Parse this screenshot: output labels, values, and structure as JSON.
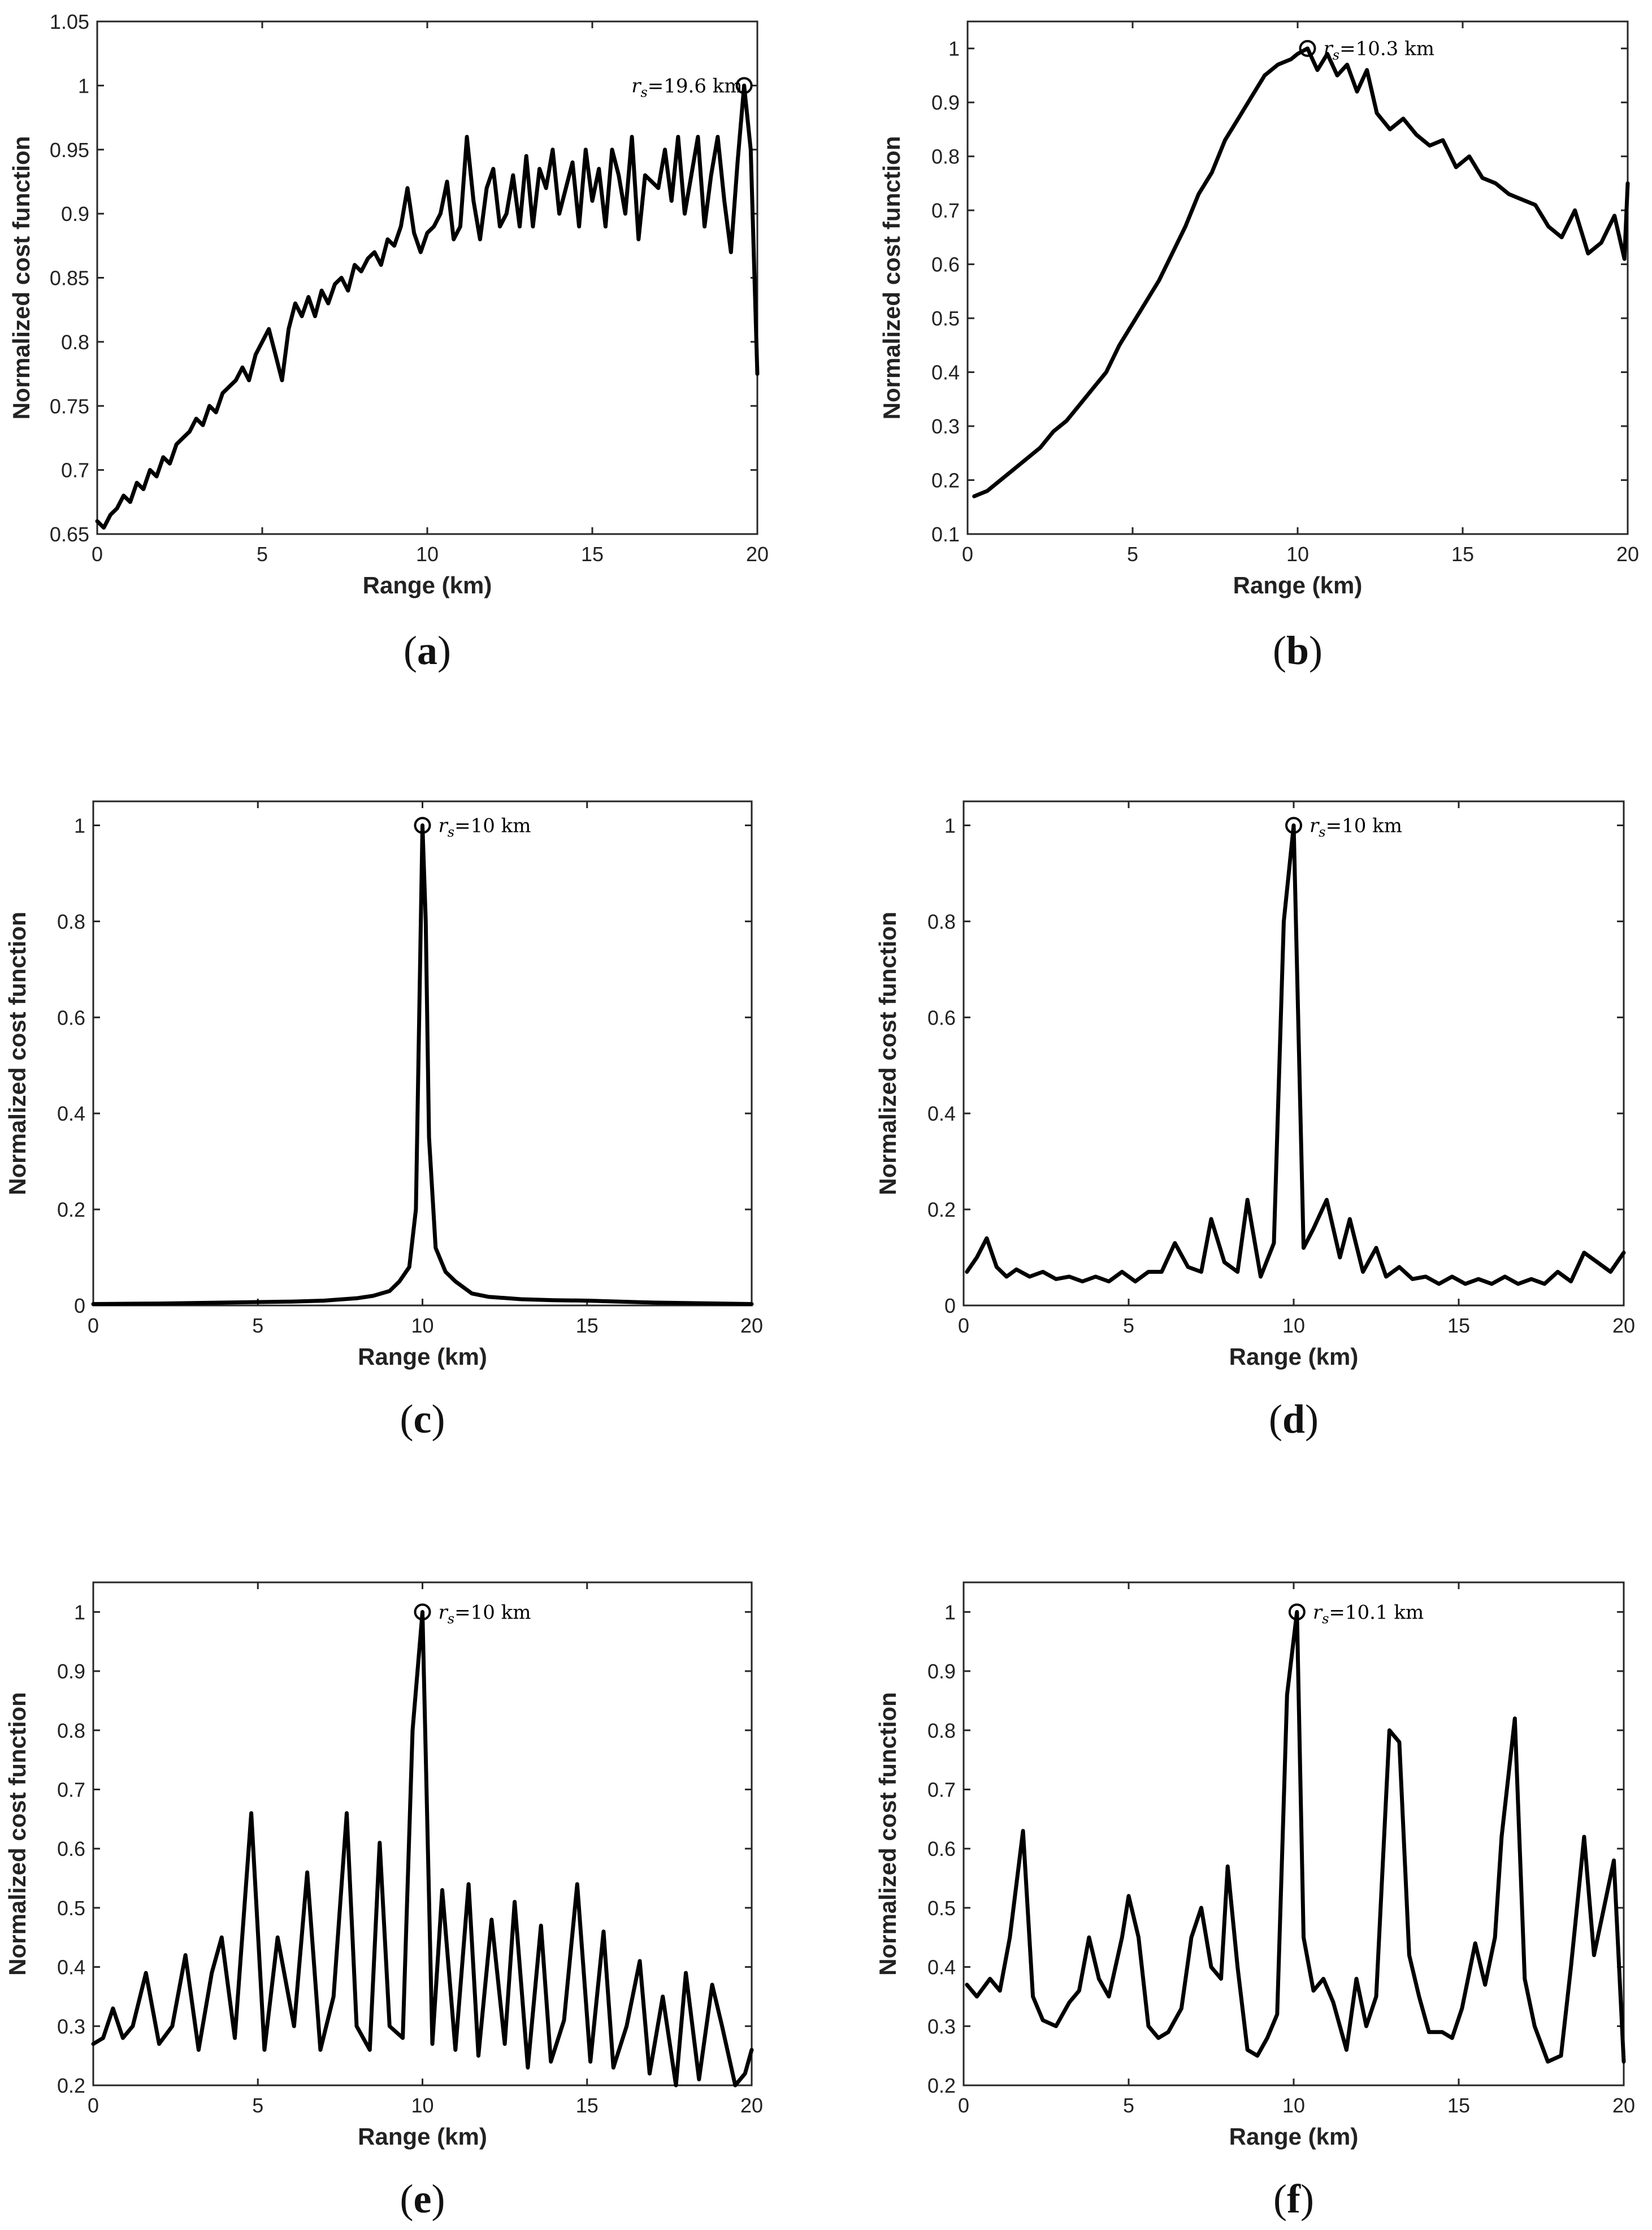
{
  "chart_data": [
    {
      "panel": "a",
      "caption": "a",
      "type": "line",
      "xlabel": "Range (km)",
      "ylabel": "Normalized cost function",
      "xlim": [
        0,
        20
      ],
      "ylim": [
        0.65,
        1.05
      ],
      "xticks": [
        0,
        5,
        10,
        15,
        20
      ],
      "xtick_labels": [
        "0",
        "5",
        "10",
        "15",
        "20"
      ],
      "yticks": [
        0.65,
        0.7,
        0.75,
        0.8,
        0.85,
        0.9,
        0.95,
        1,
        1.05
      ],
      "ytick_labels": [
        "0.65",
        "0.7",
        "0.75",
        "0.8",
        "0.85",
        "0.9",
        "0.95",
        "1",
        "1.05"
      ],
      "annotation": {
        "label": "r",
        "subscript": "s",
        "text": "=19.6 km",
        "x": 19.6,
        "y": 1.0,
        "side": "left"
      },
      "x": [
        0,
        0.2,
        0.4,
        0.6,
        0.8,
        1.0,
        1.2,
        1.4,
        1.6,
        1.8,
        2.0,
        2.2,
        2.4,
        2.6,
        2.8,
        3.0,
        3.2,
        3.4,
        3.6,
        3.8,
        4.0,
        4.2,
        4.4,
        4.6,
        4.8,
        5.0,
        5.2,
        5.4,
        5.6,
        5.8,
        6.0,
        6.2,
        6.4,
        6.6,
        6.8,
        7.0,
        7.2,
        7.4,
        7.6,
        7.8,
        8.0,
        8.2,
        8.4,
        8.6,
        8.8,
        9.0,
        9.2,
        9.4,
        9.6,
        9.8,
        10.0,
        10.2,
        10.4,
        10.6,
        10.8,
        11.0,
        11.2,
        11.4,
        11.6,
        11.8,
        12.0,
        12.2,
        12.4,
        12.6,
        12.8,
        13.0,
        13.2,
        13.4,
        13.6,
        13.8,
        14.0,
        14.2,
        14.4,
        14.6,
        14.8,
        15.0,
        15.2,
        15.4,
        15.6,
        15.8,
        16.0,
        16.2,
        16.4,
        16.6,
        16.8,
        17.0,
        17.2,
        17.4,
        17.6,
        17.8,
        18.0,
        18.2,
        18.4,
        18.6,
        18.8,
        19.0,
        19.2,
        19.4,
        19.6,
        19.8,
        20.0
      ],
      "values": [
        0.66,
        0.655,
        0.665,
        0.67,
        0.68,
        0.675,
        0.69,
        0.685,
        0.7,
        0.695,
        0.71,
        0.705,
        0.72,
        0.725,
        0.73,
        0.74,
        0.735,
        0.75,
        0.745,
        0.76,
        0.765,
        0.77,
        0.78,
        0.77,
        0.79,
        0.8,
        0.81,
        0.79,
        0.77,
        0.81,
        0.83,
        0.82,
        0.835,
        0.82,
        0.84,
        0.83,
        0.845,
        0.85,
        0.84,
        0.86,
        0.855,
        0.865,
        0.87,
        0.86,
        0.88,
        0.875,
        0.89,
        0.92,
        0.885,
        0.87,
        0.885,
        0.89,
        0.9,
        0.925,
        0.88,
        0.89,
        0.96,
        0.91,
        0.88,
        0.92,
        0.935,
        0.89,
        0.9,
        0.93,
        0.89,
        0.945,
        0.89,
        0.935,
        0.92,
        0.95,
        0.9,
        0.92,
        0.94,
        0.89,
        0.95,
        0.91,
        0.935,
        0.89,
        0.95,
        0.93,
        0.9,
        0.96,
        0.88,
        0.93,
        0.925,
        0.92,
        0.95,
        0.91,
        0.96,
        0.9,
        0.93,
        0.96,
        0.89,
        0.93,
        0.96,
        0.91,
        0.87,
        0.94,
        1.0,
        0.95,
        0.775
      ]
    },
    {
      "panel": "b",
      "caption": "b",
      "type": "line",
      "xlabel": "Range (km)",
      "ylabel": "Normalized cost function",
      "xlim": [
        0,
        20
      ],
      "ylim": [
        0.1,
        1.05
      ],
      "xticks": [
        0,
        5,
        10,
        15,
        20
      ],
      "xtick_labels": [
        "0",
        "5",
        "10",
        "15",
        "20"
      ],
      "yticks": [
        0.1,
        0.2,
        0.3,
        0.4,
        0.5,
        0.6,
        0.7,
        0.8,
        0.9,
        1
      ],
      "ytick_labels": [
        "0.1",
        "0.2",
        "0.3",
        "0.4",
        "0.5",
        "0.6",
        "0.7",
        "0.8",
        "0.9",
        "1"
      ],
      "annotation": {
        "label": "r",
        "subscript": "s",
        "text": "=10.3 km",
        "x": 10.3,
        "y": 1.0,
        "side": "right"
      },
      "x": [
        0.2,
        0.6,
        1.0,
        1.4,
        1.8,
        2.2,
        2.6,
        3.0,
        3.4,
        3.8,
        4.2,
        4.6,
        5.0,
        5.4,
        5.8,
        6.2,
        6.6,
        7.0,
        7.4,
        7.8,
        8.2,
        8.6,
        9.0,
        9.4,
        9.8,
        10.0,
        10.3,
        10.6,
        10.9,
        11.2,
        11.5,
        11.8,
        12.1,
        12.4,
        12.8,
        13.2,
        13.6,
        14.0,
        14.4,
        14.8,
        15.2,
        15.6,
        16.0,
        16.4,
        16.8,
        17.2,
        17.6,
        18.0,
        18.4,
        18.8,
        19.2,
        19.6,
        19.9,
        20.0
      ],
      "values": [
        0.17,
        0.18,
        0.2,
        0.22,
        0.24,
        0.26,
        0.29,
        0.31,
        0.34,
        0.37,
        0.4,
        0.45,
        0.49,
        0.53,
        0.57,
        0.62,
        0.67,
        0.73,
        0.77,
        0.83,
        0.87,
        0.91,
        0.95,
        0.97,
        0.98,
        0.99,
        1.0,
        0.96,
        0.99,
        0.95,
        0.97,
        0.92,
        0.96,
        0.88,
        0.85,
        0.87,
        0.84,
        0.82,
        0.83,
        0.78,
        0.8,
        0.76,
        0.75,
        0.73,
        0.72,
        0.71,
        0.67,
        0.65,
        0.7,
        0.62,
        0.64,
        0.69,
        0.61,
        0.75
      ]
    },
    {
      "panel": "c",
      "caption": "c",
      "type": "line",
      "xlabel": "Range (km)",
      "ylabel": "Normalized cost function",
      "xlim": [
        0,
        20
      ],
      "ylim": [
        0,
        1.05
      ],
      "xticks": [
        0,
        5,
        10,
        15,
        20
      ],
      "xtick_labels": [
        "0",
        "5",
        "10",
        "15",
        "20"
      ],
      "yticks": [
        0,
        0.2,
        0.4,
        0.6,
        0.8,
        1
      ],
      "ytick_labels": [
        "0",
        "0.2",
        "0.4",
        "0.6",
        "0.8",
        "1"
      ],
      "annotation": {
        "label": "r",
        "subscript": "s",
        "text": "=10 km",
        "x": 10.0,
        "y": 1.0,
        "side": "right"
      },
      "x": [
        0,
        2,
        4,
        6,
        7,
        8,
        8.5,
        9.0,
        9.3,
        9.6,
        9.8,
        9.9,
        10.0,
        10.1,
        10.2,
        10.4,
        10.7,
        11.0,
        11.5,
        12.0,
        13.0,
        14.0,
        15.0,
        16.0,
        17.0,
        18.0,
        19.0,
        20.0
      ],
      "values": [
        0.003,
        0.004,
        0.006,
        0.008,
        0.01,
        0.015,
        0.02,
        0.03,
        0.05,
        0.08,
        0.2,
        0.6,
        1.0,
        0.8,
        0.35,
        0.12,
        0.07,
        0.05,
        0.025,
        0.018,
        0.013,
        0.011,
        0.01,
        0.008,
        0.006,
        0.005,
        0.004,
        0.003
      ]
    },
    {
      "panel": "d",
      "caption": "d",
      "type": "line",
      "xlabel": "Range (km)",
      "ylabel": "Normalized cost function",
      "xlim": [
        0,
        20
      ],
      "ylim": [
        0,
        1.05
      ],
      "xticks": [
        0,
        5,
        10,
        15,
        20
      ],
      "xtick_labels": [
        "0",
        "5",
        "10",
        "15",
        "20"
      ],
      "yticks": [
        0,
        0.2,
        0.4,
        0.6,
        0.8,
        1
      ],
      "ytick_labels": [
        "0",
        "0.2",
        "0.4",
        "0.6",
        "0.8",
        "1"
      ],
      "annotation": {
        "label": "r",
        "subscript": "s",
        "text": "=10 km",
        "x": 10.0,
        "y": 1.0,
        "side": "right"
      },
      "x": [
        0.1,
        0.4,
        0.7,
        1.0,
        1.3,
        1.6,
        2.0,
        2.4,
        2.8,
        3.2,
        3.6,
        4.0,
        4.4,
        4.8,
        5.2,
        5.6,
        6.0,
        6.4,
        6.8,
        7.2,
        7.5,
        7.9,
        8.3,
        8.6,
        9.0,
        9.4,
        9.7,
        10.0,
        10.3,
        10.6,
        11.0,
        11.4,
        11.7,
        12.1,
        12.5,
        12.8,
        13.2,
        13.6,
        14.0,
        14.4,
        14.8,
        15.2,
        15.6,
        16.0,
        16.4,
        16.8,
        17.2,
        17.6,
        18.0,
        18.4,
        18.8,
        19.2,
        19.6,
        20.0
      ],
      "values": [
        0.07,
        0.1,
        0.14,
        0.08,
        0.06,
        0.075,
        0.06,
        0.07,
        0.055,
        0.06,
        0.05,
        0.06,
        0.05,
        0.07,
        0.05,
        0.07,
        0.07,
        0.13,
        0.08,
        0.07,
        0.18,
        0.09,
        0.07,
        0.22,
        0.06,
        0.13,
        0.8,
        1.0,
        0.12,
        0.16,
        0.22,
        0.1,
        0.18,
        0.07,
        0.12,
        0.06,
        0.08,
        0.055,
        0.06,
        0.045,
        0.06,
        0.045,
        0.055,
        0.045,
        0.06,
        0.045,
        0.055,
        0.045,
        0.07,
        0.05,
        0.11,
        0.09,
        0.07,
        0.11
      ]
    },
    {
      "panel": "e",
      "caption": "e",
      "type": "line",
      "xlabel": "Range (km)",
      "ylabel": "Normalized cost function",
      "xlim": [
        0,
        20
      ],
      "ylim": [
        0.2,
        1.05
      ],
      "xticks": [
        0,
        5,
        10,
        15,
        20
      ],
      "xtick_labels": [
        "0",
        "5",
        "10",
        "15",
        "20"
      ],
      "yticks": [
        0.2,
        0.3,
        0.4,
        0.5,
        0.6,
        0.7,
        0.8,
        0.9,
        1
      ],
      "ytick_labels": [
        "0.2",
        "0.3",
        "0.4",
        "0.5",
        "0.6",
        "0.7",
        "0.8",
        "0.9",
        "1"
      ],
      "annotation": {
        "label": "r",
        "subscript": "s",
        "text": "=10 km",
        "x": 10.0,
        "y": 1.0,
        "side": "right"
      },
      "x": [
        0.0,
        0.3,
        0.6,
        0.9,
        1.2,
        1.6,
        2.0,
        2.4,
        2.8,
        3.2,
        3.6,
        3.9,
        4.3,
        4.8,
        5.2,
        5.6,
        6.1,
        6.5,
        6.9,
        7.3,
        7.7,
        8.0,
        8.4,
        8.7,
        9.0,
        9.4,
        9.7,
        10.0,
        10.3,
        10.6,
        11.0,
        11.4,
        11.7,
        12.1,
        12.5,
        12.8,
        13.2,
        13.6,
        13.9,
        14.3,
        14.7,
        15.1,
        15.5,
        15.8,
        16.2,
        16.6,
        16.9,
        17.3,
        17.7,
        18.0,
        18.4,
        18.8,
        19.1,
        19.5,
        19.8,
        20.0
      ],
      "values": [
        0.27,
        0.28,
        0.33,
        0.28,
        0.3,
        0.39,
        0.27,
        0.3,
        0.42,
        0.26,
        0.39,
        0.45,
        0.28,
        0.66,
        0.26,
        0.45,
        0.3,
        0.56,
        0.26,
        0.35,
        0.66,
        0.3,
        0.26,
        0.61,
        0.3,
        0.28,
        0.8,
        1.0,
        0.27,
        0.53,
        0.26,
        0.54,
        0.25,
        0.48,
        0.27,
        0.51,
        0.23,
        0.47,
        0.24,
        0.31,
        0.54,
        0.24,
        0.46,
        0.23,
        0.3,
        0.41,
        0.22,
        0.35,
        0.2,
        0.39,
        0.21,
        0.37,
        0.3,
        0.2,
        0.22,
        0.26
      ]
    },
    {
      "panel": "f",
      "caption": "f",
      "type": "line",
      "xlabel": "Range (km)",
      "ylabel": "Normalized cost function",
      "xlim": [
        0,
        20
      ],
      "ylim": [
        0.2,
        1.05
      ],
      "xticks": [
        0,
        5,
        10,
        15,
        20
      ],
      "xtick_labels": [
        "0",
        "5",
        "10",
        "15",
        "20"
      ],
      "yticks": [
        0.2,
        0.3,
        0.4,
        0.5,
        0.6,
        0.7,
        0.8,
        0.9,
        1
      ],
      "ytick_labels": [
        "0.2",
        "0.3",
        "0.4",
        "0.5",
        "0.6",
        "0.7",
        "0.8",
        "0.9",
        "1"
      ],
      "annotation": {
        "label": "r",
        "subscript": "s",
        "text": "=10.1 km",
        "x": 10.1,
        "y": 1.0,
        "side": "right"
      },
      "x": [
        0.1,
        0.4,
        0.8,
        1.1,
        1.4,
        1.8,
        2.1,
        2.4,
        2.8,
        3.2,
        3.5,
        3.8,
        4.1,
        4.4,
        4.8,
        5.0,
        5.3,
        5.6,
        5.9,
        6.2,
        6.6,
        6.9,
        7.2,
        7.5,
        7.8,
        8.0,
        8.3,
        8.6,
        8.9,
        9.2,
        9.5,
        9.8,
        10.1,
        10.3,
        10.6,
        10.9,
        11.2,
        11.6,
        11.9,
        12.2,
        12.5,
        12.9,
        13.2,
        13.5,
        13.8,
        14.1,
        14.5,
        14.8,
        15.1,
        15.5,
        15.8,
        16.1,
        16.3,
        16.7,
        17.0,
        17.3,
        17.7,
        18.1,
        18.4,
        18.8,
        19.1,
        19.4,
        19.7,
        20.0
      ],
      "values": [
        0.37,
        0.35,
        0.38,
        0.36,
        0.45,
        0.63,
        0.35,
        0.31,
        0.3,
        0.34,
        0.36,
        0.45,
        0.38,
        0.35,
        0.45,
        0.52,
        0.45,
        0.3,
        0.28,
        0.29,
        0.33,
        0.45,
        0.5,
        0.4,
        0.38,
        0.57,
        0.4,
        0.26,
        0.25,
        0.28,
        0.32,
        0.86,
        1.0,
        0.45,
        0.36,
        0.38,
        0.34,
        0.26,
        0.38,
        0.3,
        0.35,
        0.8,
        0.78,
        0.42,
        0.35,
        0.29,
        0.29,
        0.28,
        0.33,
        0.44,
        0.37,
        0.45,
        0.62,
        0.82,
        0.38,
        0.3,
        0.24,
        0.25,
        0.4,
        0.62,
        0.42,
        0.5,
        0.58,
        0.24
      ]
    }
  ]
}
